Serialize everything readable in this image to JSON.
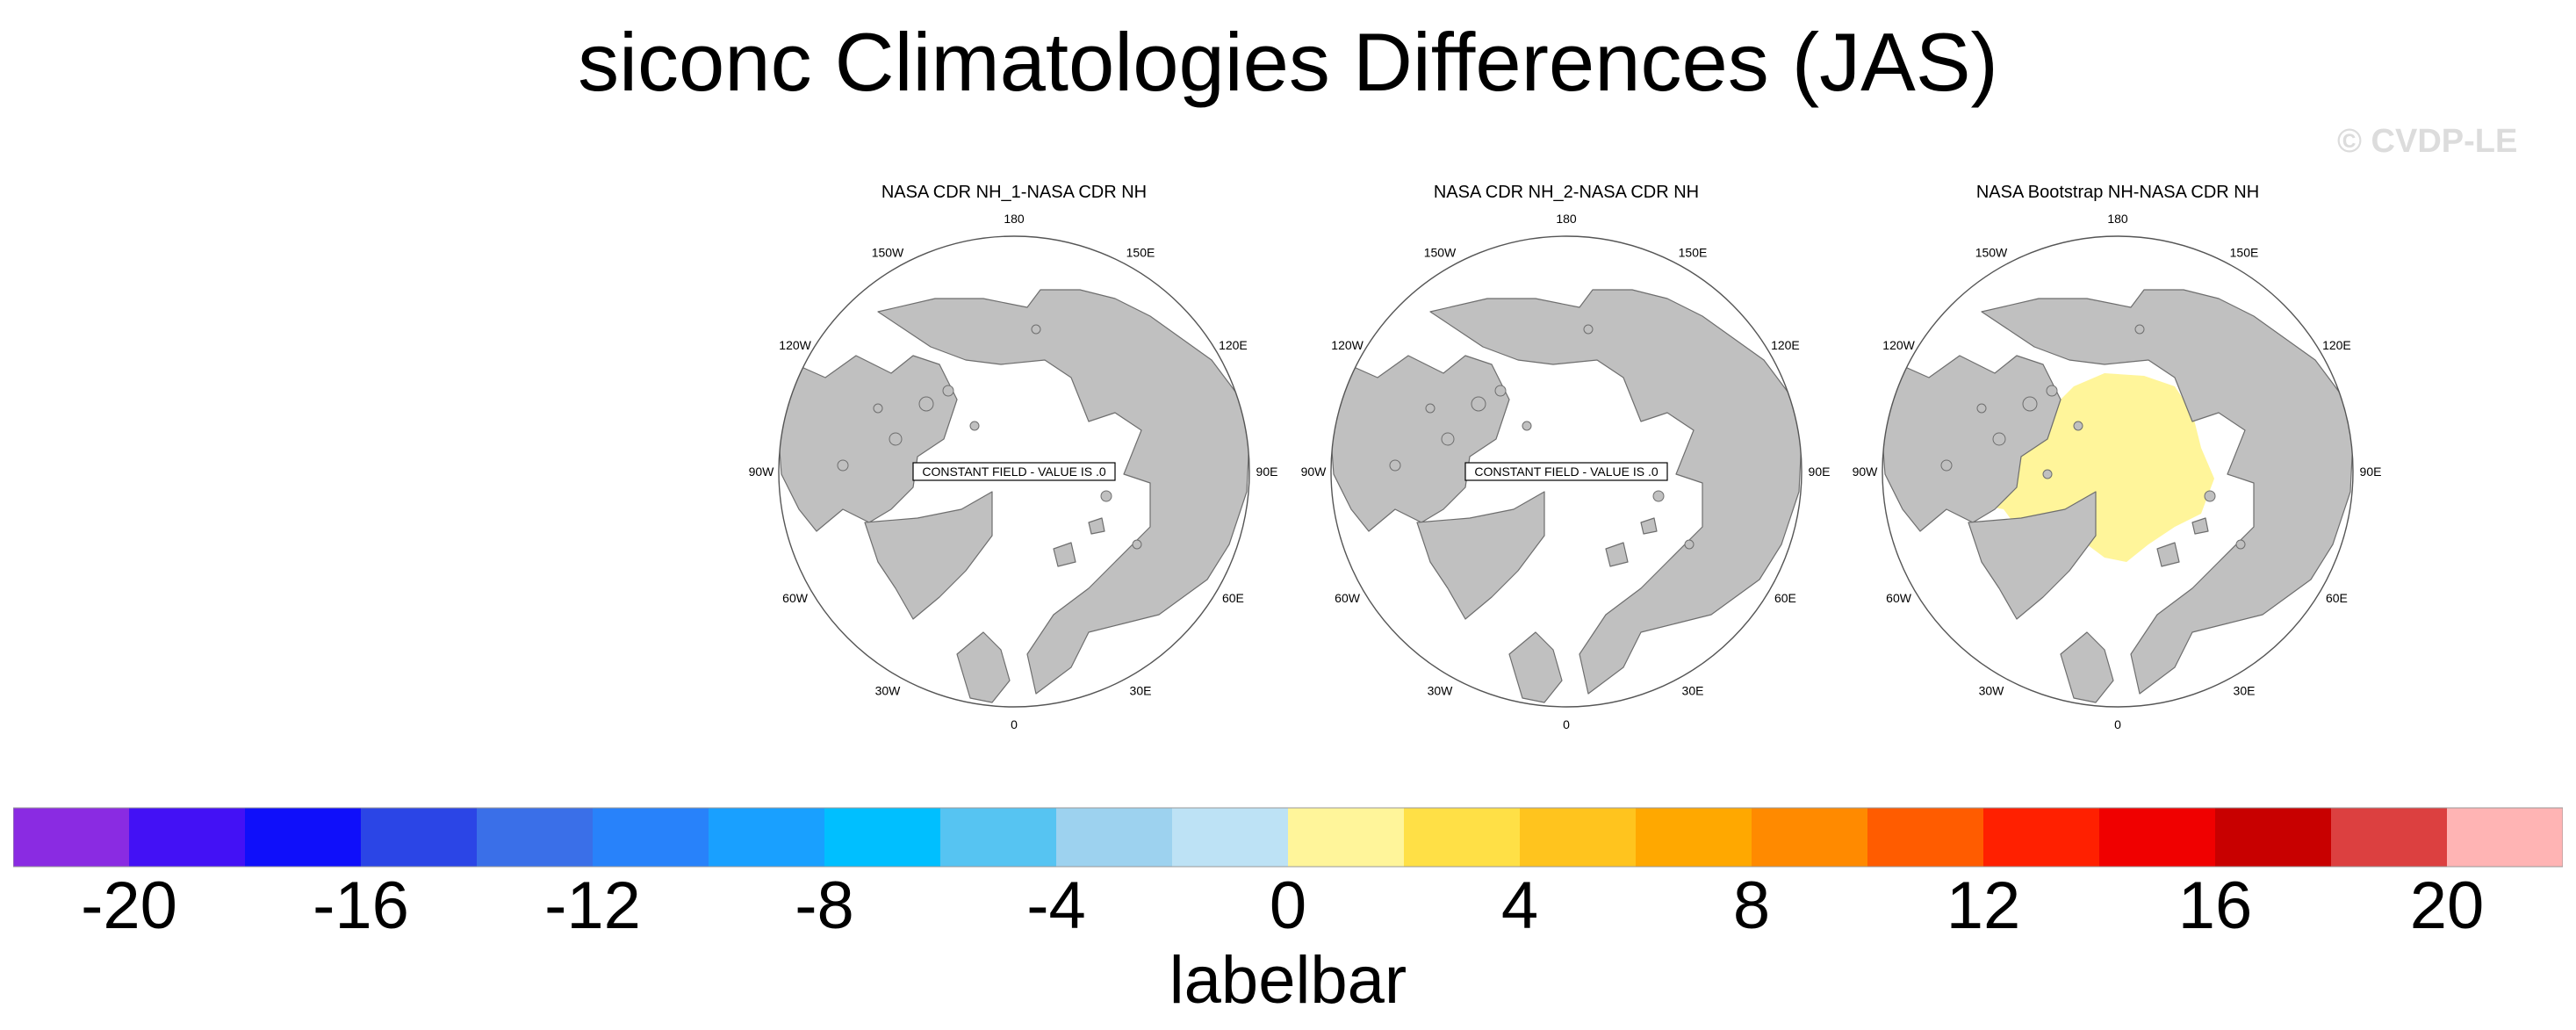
{
  "title": "siconc Climatologies Differences (JAS)",
  "watermark": "© CVDP-LE",
  "panels": [
    {
      "title": "NASA CDR NH_1-NASA CDR NH",
      "note": "CONSTANT FIELD - VALUE IS .0",
      "has_anomaly": false
    },
    {
      "title": "NASA CDR NH_2-NASA CDR NH",
      "note": "CONSTANT FIELD - VALUE IS .0",
      "has_anomaly": false
    },
    {
      "title": "NASA Bootstrap NH-NASA CDR NH",
      "note": "",
      "has_anomaly": true,
      "anomaly_value_range": [
        0,
        2
      ]
    }
  ],
  "longitude_labels": [
    "180",
    "150E",
    "120E",
    "90E",
    "60E",
    "30E",
    "0",
    "30W",
    "60W",
    "90W",
    "120W",
    "150W"
  ],
  "colors": {
    "land": "#c0c0c0",
    "coast": "#6e6e6e",
    "ocean": "#ffffff",
    "anomaly": "#fff59a"
  },
  "chart_data": {
    "type": "heatmap",
    "title": "siconc Climatologies Differences (JAS)",
    "colorbar": {
      "label": "labelbar",
      "tick_labels": [
        "-20",
        "-16",
        "-12",
        "-8",
        "-4",
        "0",
        "4",
        "8",
        "12",
        "16",
        "20"
      ],
      "tick_values": [
        -20,
        -16,
        -12,
        -8,
        -4,
        0,
        4,
        8,
        12,
        16,
        20
      ],
      "bin_edges": [
        -22,
        -20,
        -18,
        -16,
        -14,
        -12,
        -10,
        -8,
        -6,
        -4,
        -2,
        0,
        2,
        4,
        6,
        8,
        10,
        12,
        14,
        16,
        18,
        20,
        22
      ],
      "bin_colors": [
        "#8a2be2",
        "#4311f5",
        "#0f0ffa",
        "#2b45e6",
        "#3a6fe8",
        "#2882fa",
        "#19a0ff",
        "#00bfff",
        "#56c4f2",
        "#9dd2ef",
        "#bde2f5",
        "#fff59a",
        "#ffe046",
        "#ffc41e",
        "#ffa800",
        "#ff8a00",
        "#ff5c00",
        "#ff2000",
        "#f00000",
        "#c80000",
        "#dc4040",
        "#ffb4b4"
      ]
    }
  }
}
